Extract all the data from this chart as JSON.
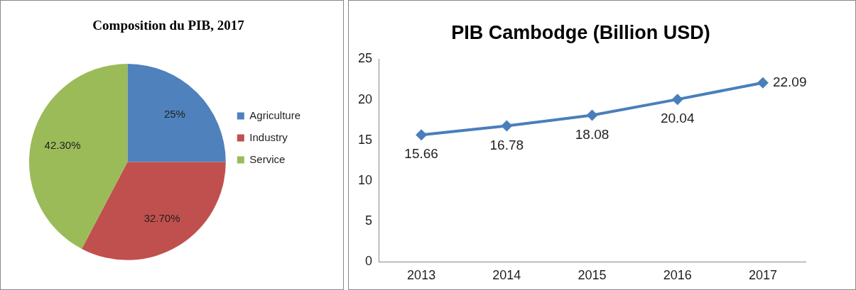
{
  "chart_data": [
    {
      "type": "pie",
      "title": "Composition du PIB, 2017",
      "categories": [
        "Agriculture",
        "Industry",
        "Service"
      ],
      "values": [
        25,
        32.7,
        42.3
      ],
      "value_labels": [
        "25%",
        "32.70%",
        "42.30%"
      ],
      "colors": [
        "#4f81bd",
        "#c0504d",
        "#9bbb59"
      ],
      "legend": "right"
    },
    {
      "type": "line",
      "title": "PIB Cambodge (Billion USD)",
      "categories": [
        "2013",
        "2014",
        "2015",
        "2016",
        "2017"
      ],
      "series": [
        {
          "color": "#4a7ebb",
          "values": [
            15.66,
            16.78,
            18.08,
            20.04,
            22.09
          ]
        }
      ],
      "ylim": [
        0,
        25
      ],
      "yticks": [
        0,
        5,
        10,
        15,
        20,
        25
      ],
      "grid": false,
      "legend": false,
      "marker": "diamond",
      "line_style": "solid",
      "data_labels": true
    }
  ]
}
